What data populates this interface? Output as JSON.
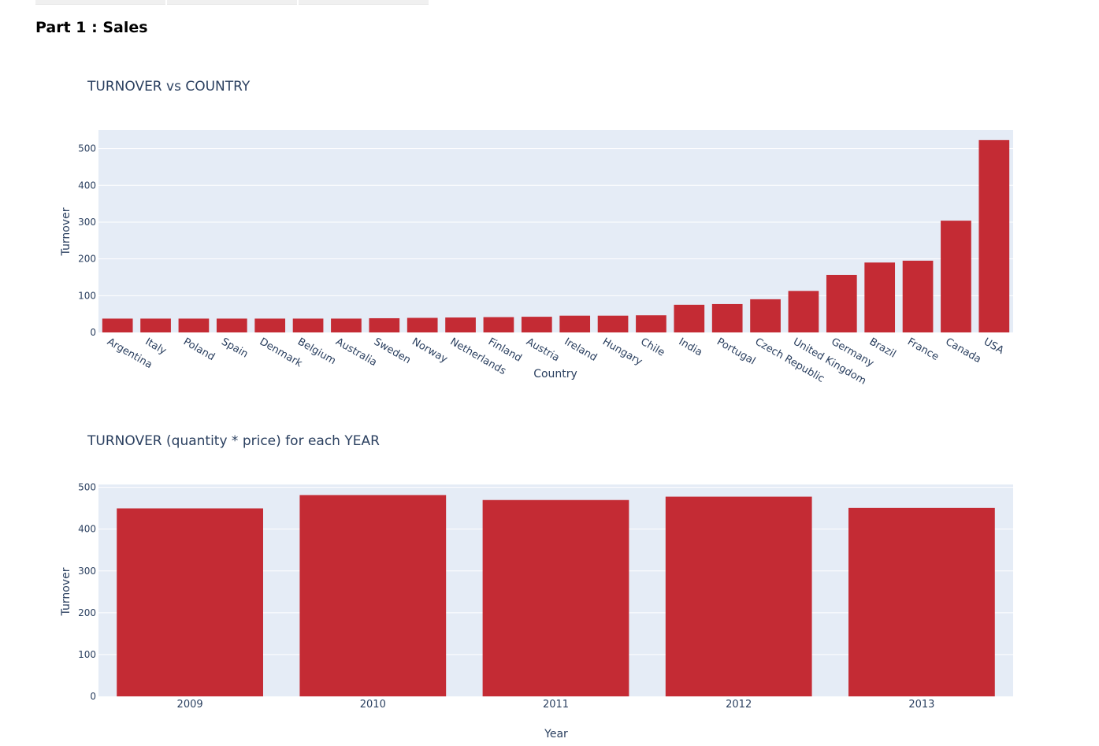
{
  "header": {
    "tabs": [
      "",
      "",
      ""
    ],
    "section_title": "Part 1 : Sales"
  },
  "colors": {
    "bar": "#c42b34",
    "plot_bg": "#e5ecf6",
    "grid": "#ffffff",
    "text": "#2a3f5f"
  },
  "chart_data": [
    {
      "type": "bar",
      "title": "TURNOVER vs COUNTRY",
      "xlabel": "Country",
      "ylabel": "Turnover",
      "categories": [
        "Argentina",
        "Italy",
        "Poland",
        "Spain",
        "Denmark",
        "Belgium",
        "Australia",
        "Sweden",
        "Norway",
        "Netherlands",
        "Finland",
        "Austria",
        "Ireland",
        "Hungary",
        "Chile",
        "India",
        "Portugal",
        "Czech Republic",
        "United Kingdom",
        "Germany",
        "Brazil",
        "France",
        "Canada",
        "USA"
      ],
      "values": [
        37.62,
        37.62,
        37.62,
        37.62,
        37.62,
        37.62,
        37.62,
        38.62,
        39.62,
        40.62,
        41.62,
        42.62,
        45.62,
        45.62,
        46.62,
        75.26,
        77.24,
        90.24,
        112.86,
        156.48,
        190.1,
        195.1,
        303.96,
        523.06
      ],
      "yticks": [
        0,
        100,
        200,
        300,
        400,
        500
      ],
      "ylim": [
        0,
        550.6
      ],
      "grid": true,
      "tick_angle": 30
    },
    {
      "type": "bar",
      "title": "TURNOVER (quantity * price) for each YEAR",
      "xlabel": "Year",
      "ylabel": "Turnover",
      "categories": [
        "2009",
        "2010",
        "2011",
        "2012",
        "2013"
      ],
      "values": [
        449.46,
        481.45,
        469.58,
        477.53,
        450.58
      ],
      "yticks": [
        0,
        100,
        200,
        300,
        400,
        500
      ],
      "ylim": [
        0,
        506.79
      ],
      "grid": true,
      "tick_angle": 0
    }
  ]
}
